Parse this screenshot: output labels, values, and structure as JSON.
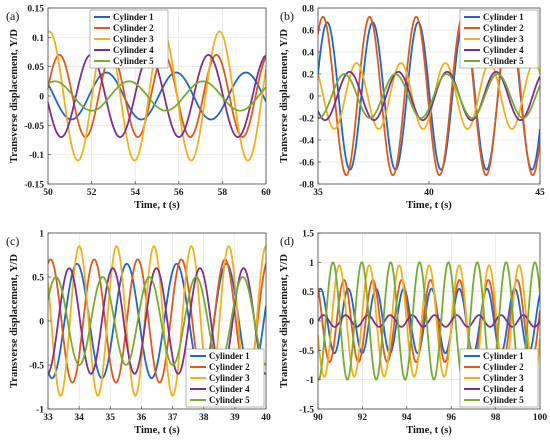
{
  "colors": [
    "#1f66c7",
    "#de5a1c",
    "#f0b11d",
    "#7e2f8e",
    "#77ac30"
  ],
  "chart_data": [
    {
      "panel_label": "(a)",
      "type": "line",
      "xlabel": "Time, t (s)",
      "ylabel": "Transverse displacement, Y/D",
      "xlim": [
        50,
        60
      ],
      "ylim": [
        -0.15,
        0.15
      ],
      "xticks": [
        50,
        52,
        54,
        56,
        58,
        60
      ],
      "yticks": [
        -0.15,
        -0.1,
        -0.05,
        0,
        0.05,
        0.1,
        0.15
      ],
      "ytick_labels": [
        "-0.15",
        "-0.1",
        "-0.05",
        "0",
        "0.05",
        "0.1",
        "0.15"
      ],
      "grid": true,
      "legend": "top-left",
      "series": [
        {
          "name": "Cylinder 1",
          "amplitude": 0.04,
          "period": 3.2,
          "phase": 2.6,
          "offset": 0
        },
        {
          "name": "Cylinder 2",
          "amplitude": 0.07,
          "period": 2.4,
          "phase": 0.2,
          "offset": 0
        },
        {
          "name": "Cylinder 3",
          "amplitude": 0.11,
          "period": 2.6,
          "phase": 1.4,
          "offset": 0
        },
        {
          "name": "Cylinder 4",
          "amplitude": 0.07,
          "period": 2.7,
          "phase": 3.3,
          "offset": 0
        },
        {
          "name": "Cylinder 5",
          "amplitude": 0.025,
          "period": 3.4,
          "phase": 1.0,
          "offset": 0
        }
      ]
    },
    {
      "panel_label": "(b)",
      "type": "line",
      "xlabel": "Time, t (s)",
      "ylabel": "Transverse displacement, Y/D",
      "xlim": [
        35,
        45
      ],
      "ylim": [
        -0.8,
        0.8
      ],
      "xticks": [
        35,
        40,
        45
      ],
      "yticks": [
        -0.8,
        -0.6,
        -0.4,
        -0.2,
        0,
        0.2,
        0.4,
        0.6,
        0.8
      ],
      "ytick_labels": [
        "-0.8",
        "-0.6",
        "-0.4",
        "-0.2",
        "0",
        "0.2",
        "0.4",
        "0.6",
        "0.8"
      ],
      "grid": true,
      "legend": "top-right",
      "series": [
        {
          "name": "Cylinder 1",
          "amplitude": 0.67,
          "period": 2.05,
          "phase": 0.3,
          "offset": 0
        },
        {
          "name": "Cylinder 2",
          "amplitude": 0.72,
          "period": 2.1,
          "phase": 0.9,
          "offset": 0
        },
        {
          "name": "Cylinder 3",
          "amplitude": 0.3,
          "period": 2.0,
          "phase": 2.4,
          "offset": 0
        },
        {
          "name": "Cylinder 4",
          "amplitude": 0.22,
          "period": 2.2,
          "phase": 3.8,
          "offset": 0
        },
        {
          "name": "Cylinder 5",
          "amplitude": 0.2,
          "period": 2.3,
          "phase": 4.6,
          "offset": 0
        }
      ]
    },
    {
      "panel_label": "(c)",
      "type": "line",
      "xlabel": "Time, t (s)",
      "ylabel": "Transverse displacement, Y/D",
      "xlim": [
        33,
        40
      ],
      "ylim": [
        -1,
        1
      ],
      "xticks": [
        33,
        34,
        35,
        36,
        37,
        38,
        39,
        40
      ],
      "yticks": [
        -1,
        -0.5,
        0,
        0.5,
        1
      ],
      "ytick_labels": [
        "-1",
        "-0.5",
        "0",
        "0.5",
        "1"
      ],
      "grid": true,
      "legend": "bottom-right",
      "series": [
        {
          "name": "Cylinder 1",
          "amplitude": 0.65,
          "period": 1.6,
          "phase": 4.2,
          "offset": 0
        },
        {
          "name": "Cylinder 2",
          "amplitude": 0.7,
          "period": 1.4,
          "phase": 1.2,
          "offset": 0
        },
        {
          "name": "Cylinder 3",
          "amplitude": 0.85,
          "period": 1.2,
          "phase": 2.6,
          "offset": 0
        },
        {
          "name": "Cylinder 4",
          "amplitude": 0.6,
          "period": 1.4,
          "phase": 4.8,
          "offset": 0
        },
        {
          "name": "Cylinder 5",
          "amplitude": 0.5,
          "period": 1.5,
          "phase": 0.5,
          "offset": 0
        }
      ]
    },
    {
      "panel_label": "(d)",
      "type": "line",
      "xlabel": "Time, t (s)",
      "ylabel": "Transverse displacement, Y/D",
      "xlim": [
        90,
        100
      ],
      "ylim": [
        -1.5,
        1.5
      ],
      "xticks": [
        90,
        92,
        94,
        96,
        98,
        100
      ],
      "yticks": [
        -1.5,
        -1,
        -0.5,
        0,
        0.5,
        1,
        1.5
      ],
      "ytick_labels": [
        "-1.5",
        "-1",
        "-0.5",
        "0",
        "0.5",
        "1",
        "1.5"
      ],
      "grid": true,
      "legend": "bottom-right",
      "series": [
        {
          "name": "Cylinder 1",
          "amplitude": 0.55,
          "period": 1.25,
          "phase": 1.0,
          "offset": 0
        },
        {
          "name": "Cylinder 2",
          "amplitude": 0.7,
          "period": 1.3,
          "phase": 2.2,
          "offset": 0
        },
        {
          "name": "Cylinder 3",
          "amplitude": 0.95,
          "period": 1.35,
          "phase": 3.4,
          "offset": 0
        },
        {
          "name": "Cylinder 4",
          "amplitude": 0.1,
          "period": 1.0,
          "phase": 0.0,
          "offset": 0
        },
        {
          "name": "Cylinder 5",
          "amplitude": 1.0,
          "period": 1.3,
          "phase": 4.6,
          "offset": 0
        }
      ]
    }
  ]
}
